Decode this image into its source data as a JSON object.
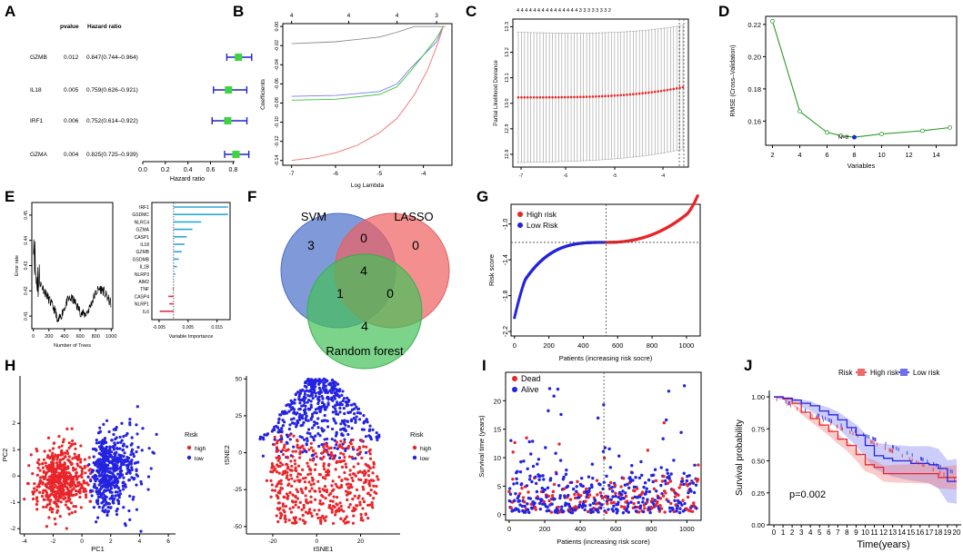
{
  "panel_letters": [
    "A",
    "B",
    "C",
    "D",
    "E",
    "F",
    "G",
    "H",
    "I",
    "J"
  ],
  "colors": {
    "high": "#e8262a",
    "low": "#2323e0",
    "green": "#39c439",
    "forest_bar": "#2aa7dc",
    "neg_bar": "#e03048",
    "venn_svm": "#4a6fc9",
    "venn_lasso": "#f06060",
    "venn_rf": "#44c058"
  },
  "chart_data": [
    {
      "id": "A",
      "type": "forest",
      "headers": {
        "pvalue": "pvalue",
        "hr": "Hazard ratio"
      },
      "genes": [
        "GZMB",
        "IL18",
        "IRF1",
        "GZMA"
      ],
      "pvalues": [
        "0.012",
        "0.005",
        "0.006",
        "0.004"
      ],
      "hr_text": [
        "0.847(0.744–0.964)",
        "0.759(0.626–0.921)",
        "0.752(0.614–0.922)",
        "0.825(0.725–0.939)"
      ],
      "hr": [
        0.847,
        0.759,
        0.752,
        0.825
      ],
      "lo": [
        0.744,
        0.626,
        0.614,
        0.725
      ],
      "hi": [
        0.964,
        0.921,
        0.922,
        0.939
      ],
      "xticks": [
        "0.0",
        "0.2",
        "0.4",
        "0.6",
        "0.8"
      ],
      "xlabel": "Hazard ratio",
      "xlim": [
        0,
        0.95
      ]
    },
    {
      "id": "B",
      "type": "line",
      "xlabel": "Log Lambda",
      "ylabel": "Coefficients",
      "xticks": [
        "-7",
        "-6",
        "-5",
        "-4"
      ],
      "yticks": [
        "0.00",
        "-0.02",
        "-0.04",
        "-0.06",
        "-0.08",
        "-0.10",
        "-0.12",
        "-0.14"
      ],
      "top_ticks": [
        "4",
        "4",
        "4",
        "3"
      ],
      "xlim": [
        -7,
        -3.4
      ],
      "ylim": [
        -0.14,
        0.0
      ]
    },
    {
      "id": "C",
      "type": "scatter",
      "ylabel": "Partial Likelihood Deviance",
      "yticks": [
        "12.8",
        "12.9",
        "13.0",
        "13.1",
        "13.2",
        "13.3"
      ],
      "xticks": [
        "-7",
        "-6",
        "-5",
        "-4"
      ],
      "top_ticks": "4 4 4 4 4 4 4 4 4 4 4 4 4 4 4 3 3 3 3 3 3 3 2",
      "ylim": [
        12.75,
        13.33
      ]
    },
    {
      "id": "D",
      "type": "line",
      "x": [
        2,
        4,
        6,
        7,
        8,
        10,
        13,
        15
      ],
      "y": [
        0.222,
        0.166,
        0.153,
        0.151,
        0.15,
        0.152,
        0.154,
        0.156
      ],
      "best_label": "N=8",
      "xlabel": "Variables",
      "ylabel": "RMSE (Cross–Validation)",
      "xticks": [
        "2",
        "4",
        "6",
        "8",
        "10",
        "12",
        "14"
      ],
      "yticks": [
        "0.16",
        "0.18",
        "0.20",
        "0.22"
      ],
      "xlim": [
        1.5,
        15.5
      ],
      "ylim": [
        0.145,
        0.225
      ]
    },
    {
      "id": "E1",
      "type": "line",
      "xlabel": "Number of Trees",
      "ylabel": "Error rate",
      "xticks": [
        "0",
        "200",
        "400",
        "600",
        "800",
        "1000"
      ],
      "yticks": [
        "0.41",
        "0.42",
        "0.43",
        "0.44",
        "0.45"
      ],
      "xlim": [
        0,
        1000
      ],
      "ylim": [
        0.405,
        0.455
      ]
    },
    {
      "id": "E2",
      "type": "bar",
      "categories": [
        "IRF1",
        "GSDMC",
        "NLRC4",
        "GZMA",
        "CASP1",
        "IL18",
        "GZMB",
        "GSDMB",
        "IL1B",
        "NLRP3",
        "AIM2",
        "TNF",
        "CASP4",
        "NLRP1",
        "IL6"
      ],
      "values": [
        0.0188,
        0.0188,
        0.0095,
        0.0065,
        0.0045,
        0.0038,
        0.0028,
        0.0018,
        0.0012,
        0.0006,
        0.0002,
        -0.0003,
        -0.0018,
        -0.0015,
        -0.0048
      ],
      "xlabel": "Variable Importance",
      "xticks": [
        "-0.005",
        "0.005",
        "0.015"
      ],
      "xlim": [
        -0.0075,
        0.0195
      ]
    },
    {
      "id": "F",
      "type": "venn",
      "sets": [
        "SVM",
        "LASSO",
        "Random forest"
      ],
      "counts": {
        "svm_only": "3",
        "lasso_only": "0",
        "rf_only": "4",
        "svm_lasso": "0",
        "svm_rf": "1",
        "lasso_rf": "0",
        "all": "4"
      }
    },
    {
      "id": "G",
      "type": "scatter",
      "xlabel": "Patients (increasing risk socre)",
      "ylabel": "Risk score",
      "legend": [
        "High risk",
        "Low Risk"
      ],
      "xticks": [
        "0",
        "200",
        "400",
        "600",
        "800",
        "1000"
      ],
      "yticks": [
        "-1.0",
        "-1.4",
        "-1.8",
        "-2.2"
      ],
      "cutoff_x": 533,
      "cutoff_y": -1.205,
      "xlim": [
        -20,
        1080
      ],
      "ylim": [
        -2.25,
        -0.78
      ]
    },
    {
      "id": "H1",
      "type": "scatter",
      "xlabel": "PC1",
      "ylabel": "PC2",
      "legend_title": "Risk",
      "legend": [
        "high",
        "low"
      ],
      "xticks": [
        "-4",
        "-2",
        "0",
        "2",
        "4",
        "6"
      ],
      "yticks": [
        "2",
        "1",
        "0",
        "-1",
        "-2"
      ],
      "xlim": [
        -4.3,
        6.5
      ],
      "ylim": [
        -2.2,
        3.8
      ]
    },
    {
      "id": "H2",
      "type": "scatter",
      "xlabel": "tSNE1",
      "ylabel": "tSNE2",
      "legend_title": "Risk",
      "legend": [
        "high",
        "low"
      ],
      "xticks": [
        "-20",
        "0",
        "20"
      ],
      "yticks": [
        "50",
        "25",
        "0",
        "-25",
        "-50"
      ],
      "xlim": [
        -32,
        38
      ],
      "ylim": [
        -55,
        52
      ]
    },
    {
      "id": "I",
      "type": "scatter",
      "xlabel": "Patients (increasing risk score)",
      "ylabel": "Survival time (years)",
      "legend": [
        "Dead",
        "Alive"
      ],
      "xticks": [
        "0",
        "200",
        "400",
        "600",
        "800",
        "1000"
      ],
      "yticks": [
        "20",
        "15",
        "10",
        "5",
        "0"
      ],
      "cutoff_x": 533,
      "xlim": [
        -20,
        1080
      ],
      "ylim": [
        -1,
        25
      ]
    },
    {
      "id": "J",
      "type": "line",
      "legend_title": "Risk",
      "legend": [
        "High risk",
        "Low risk"
      ],
      "xlabel": "Time(years)",
      "ylabel": "Survival probability",
      "xticks": [
        "0",
        "1",
        "2",
        "3",
        "4",
        "5",
        "6",
        "7",
        "8",
        "9",
        "10",
        "11",
        "12",
        "13",
        "14",
        "15",
        "16",
        "17",
        "18",
        "19",
        "20"
      ],
      "yticks": [
        "1.00",
        "0.75",
        "0.50",
        "0.25",
        "0.00"
      ],
      "pvalue": "p=0.002",
      "xlim": [
        -0.5,
        20.5
      ],
      "ylim": [
        0,
        1.05
      ],
      "high_km": [
        [
          0,
          1.0
        ],
        [
          1,
          0.985
        ],
        [
          2,
          0.95
        ],
        [
          3,
          0.88
        ],
        [
          4,
          0.83
        ],
        [
          5,
          0.78
        ],
        [
          6,
          0.73
        ],
        [
          7,
          0.67
        ],
        [
          8,
          0.62
        ],
        [
          9,
          0.55
        ],
        [
          10,
          0.47
        ],
        [
          11,
          0.45
        ],
        [
          12,
          0.4
        ],
        [
          13,
          0.4
        ],
        [
          15,
          0.4
        ],
        [
          17,
          0.4
        ],
        [
          18,
          0.37
        ],
        [
          19,
          0.37
        ],
        [
          20,
          0.37
        ]
      ],
      "low_km": [
        [
          0,
          1.0
        ],
        [
          1,
          0.99
        ],
        [
          2,
          0.975
        ],
        [
          3,
          0.95
        ],
        [
          4,
          0.93
        ],
        [
          5,
          0.89
        ],
        [
          6,
          0.86
        ],
        [
          7,
          0.82
        ],
        [
          8,
          0.76
        ],
        [
          9,
          0.7
        ],
        [
          10,
          0.62
        ],
        [
          11,
          0.54
        ],
        [
          12,
          0.52
        ],
        [
          13,
          0.5
        ],
        [
          15,
          0.48
        ],
        [
          17,
          0.47
        ],
        [
          18,
          0.44
        ],
        [
          19,
          0.34
        ],
        [
          20,
          0.34
        ]
      ]
    }
  ]
}
